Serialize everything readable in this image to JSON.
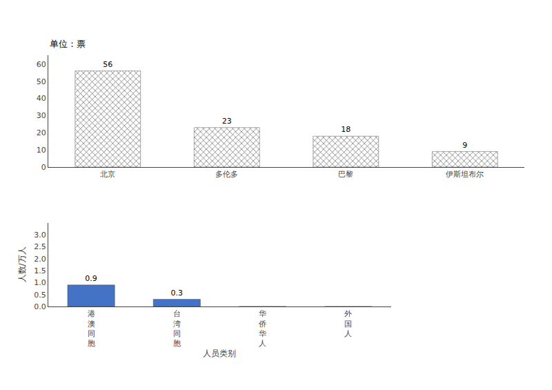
{
  "chart_data": [
    {
      "type": "bar",
      "title": "单位：票",
      "categories": [
        "北京",
        "多伦多",
        "巴黎",
        "伊斯坦布尔"
      ],
      "values": [
        56,
        23,
        18,
        9
      ],
      "color": "#b8b8b8",
      "ylim": [
        0,
        65
      ],
      "yticks": [
        0,
        10,
        20,
        30,
        40,
        50,
        60
      ],
      "data_labels": true,
      "grid": false
    },
    {
      "type": "bar",
      "ylabel": "人数/万人",
      "xlabel": "人员类别",
      "categories": [
        "港澳同胞",
        "台湾同胞",
        "华侨华人",
        "外国人"
      ],
      "values": [
        0.9,
        0.3,
        0,
        0
      ],
      "value_labels": [
        "0.9",
        "0.3",
        null,
        null
      ],
      "color": "#4472c4",
      "ylim": [
        0,
        3.5
      ],
      "yticks": [
        {
          "value": 0,
          "label": "0.0"
        },
        0.5,
        {
          "value": 1,
          "label": "1.0"
        },
        1.5,
        {
          "value": 2,
          "label": "2.0"
        },
        2.5,
        {
          "value": 3,
          "label": "3.0"
        }
      ],
      "data_labels": true,
      "grid": false
    }
  ]
}
